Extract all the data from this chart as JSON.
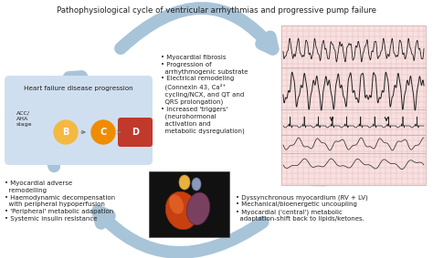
{
  "title": "Pathophysiological cycle of ventricular arrhythmias and progressive pump failure",
  "title_fontsize": 6.2,
  "bg_color": "#ffffff",
  "top_text": "• Myocardial fibrosis\n• Progression of\n  arrhythmogenic substrate\n• Electrical remodeling\n  (Connexin 43, Ca²⁺\n  cycling/NCX, and QT and\n  QRS prolongation)\n• Increased 'triggers'\n  (neurohormonal\n  activation and\n  metabolic dysregulation)",
  "bottom_left_text": "• Myocardial adverse\n  remodelling\n• Haemodynamic decompensation\n  with peripheral hypoperfusion\n• 'Peripheral' metabolic adapation\n• Systemic insulin resistance",
  "bottom_right_text": "• Dyssynchronous myocardium (RV + LV)\n• Mechanical/bioenergetic uncoupling\n• Myocardial ('central') metabolic\n  adaptation-shift back to lipids/ketones.",
  "hf_box_text": "Heart failure disease progression",
  "hf_box_label": "ACC/\nAHA\nstage",
  "stage_b_color": "#f5b942",
  "stage_c_color": "#f08c00",
  "stage_d_color": "#c0392b",
  "box_bg_color": "#d0dff0",
  "arrow_color": "#a8c4d8",
  "text_color": "#222222",
  "font_size": 5.0,
  "ecg_bg_color": "#f9e0e0",
  "ecg_grid_color": "#e0b8b8",
  "heart_bg_color": "#111111"
}
